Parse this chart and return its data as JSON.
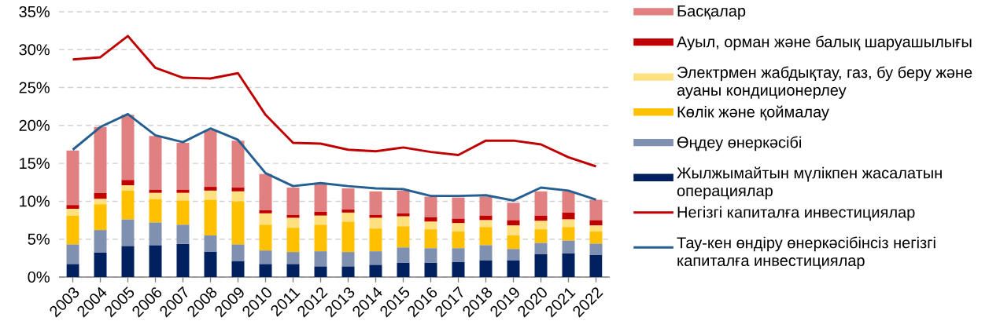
{
  "chart_data": {
    "type": "bar",
    "stacked": true,
    "grid": "y",
    "legend": "right",
    "categories": [
      "2003",
      "2004",
      "2005",
      "2006",
      "2007",
      "2008",
      "2009",
      "2010",
      "2011",
      "2012",
      "2013",
      "2014",
      "2015",
      "2016",
      "2017",
      "2018",
      "2019",
      "2020",
      "2021",
      "2022"
    ],
    "ylim": [
      0,
      35
    ],
    "yticks": [
      {
        "value": 0,
        "label": "0%"
      },
      {
        "value": 5,
        "label": "5%"
      },
      {
        "value": 10,
        "label": "10%"
      },
      {
        "value": 15,
        "label": "15%"
      },
      {
        "value": 20,
        "label": "20%"
      },
      {
        "value": 25,
        "label": "25%"
      },
      {
        "value": 30,
        "label": "30%"
      },
      {
        "value": 35,
        "label": "35%"
      }
    ],
    "series": [
      {
        "name": "Жылжымайтын мүлікпен жасалатын операциялар",
        "color": "#002060",
        "values": [
          1.7,
          3.2,
          4.1,
          4.2,
          4.4,
          3.3,
          2.1,
          1.7,
          1.7,
          1.4,
          1.4,
          1.6,
          1.9,
          1.9,
          2.0,
          2.2,
          2.2,
          3.0,
          3.1,
          2.9
        ]
      },
      {
        "name": "Өңдеу өнеркәсібі",
        "color": "#8090b0",
        "values": [
          2.6,
          3.0,
          3.5,
          3.0,
          2.5,
          2.2,
          2.2,
          1.8,
          1.6,
          2.0,
          1.9,
          1.8,
          2.0,
          1.9,
          1.8,
          2.0,
          1.5,
          1.5,
          1.7,
          1.5
        ]
      },
      {
        "name": "Көлік және қоймалау",
        "color": "#ffc000",
        "values": [
          3.8,
          3.4,
          3.8,
          3.1,
          3.2,
          4.7,
          5.7,
          3.4,
          3.2,
          3.5,
          4.0,
          3.0,
          2.8,
          2.5,
          2.2,
          2.4,
          1.8,
          1.8,
          1.8,
          1.6
        ]
      },
      {
        "name": "Электрмен жабдықтау, газ, бу беру және ауаны кондиционерлеу",
        "color": "#ffe080",
        "values": [
          0.9,
          0.7,
          0.7,
          0.8,
          1.0,
          1.2,
          1.3,
          1.5,
          1.3,
          1.2,
          1.2,
          1.4,
          1.3,
          1.0,
          1.1,
          0.9,
          1.3,
          1.1,
          1.0,
          0.8
        ]
      },
      {
        "name": "Ауыл, орман және балық шаруашылығы",
        "color": "#c00000",
        "values": [
          0.5,
          0.8,
          0.7,
          0.4,
          0.4,
          0.5,
          0.5,
          0.4,
          0.4,
          0.5,
          0.4,
          0.4,
          0.4,
          0.6,
          0.6,
          0.6,
          0.7,
          0.7,
          0.9,
          0.7
        ]
      },
      {
        "name": "Басқалар",
        "color": "#e08080",
        "values": [
          7.2,
          8.7,
          8.6,
          7.1,
          6.2,
          7.5,
          6.2,
          4.8,
          3.6,
          3.8,
          2.8,
          3.1,
          3.0,
          2.7,
          2.8,
          2.5,
          2.3,
          3.2,
          2.8,
          2.7
        ]
      },
      {
        "name": "Негізгі капиталға инвестициялар",
        "type": "line",
        "line_style": "solid",
        "color": "#c00000",
        "values": [
          28.7,
          29.0,
          31.8,
          27.6,
          26.3,
          26.2,
          26.9,
          21.4,
          17.7,
          17.6,
          16.8,
          16.6,
          17.1,
          16.5,
          16.1,
          18.0,
          18.0,
          17.5,
          15.8,
          14.6
        ]
      },
      {
        "name": "Тау-кен өндіру өнеркәсібінсіз негізгі капиталға инвестициялар",
        "type": "line",
        "line_style": "solid",
        "color": "#255e91",
        "values": [
          16.8,
          19.8,
          21.5,
          18.7,
          17.8,
          19.6,
          18.1,
          13.7,
          12.0,
          12.4,
          12.0,
          11.7,
          11.6,
          10.7,
          10.7,
          10.8,
          10.1,
          11.8,
          11.4,
          10.2
        ]
      }
    ]
  }
}
